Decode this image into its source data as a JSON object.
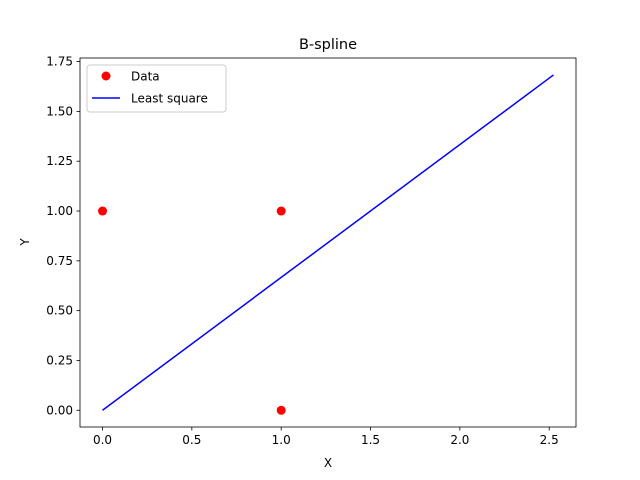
{
  "chart_data": {
    "type": "scatter",
    "title": "B-spline",
    "xlabel": "X",
    "ylabel": "Y",
    "xlim": [
      -0.126,
      2.65
    ],
    "ylim": [
      -0.084,
      1.768
    ],
    "xticks": [
      0.0,
      0.5,
      1.0,
      1.5,
      2.0,
      2.5
    ],
    "xtick_labels": [
      "0.0",
      "0.5",
      "1.0",
      "1.5",
      "2.0",
      "2.5"
    ],
    "yticks": [
      0.0,
      0.25,
      0.5,
      0.75,
      1.0,
      1.25,
      1.5,
      1.75
    ],
    "ytick_labels": [
      "0.00",
      "0.25",
      "0.50",
      "0.75",
      "1.00",
      "1.25",
      "1.50",
      "1.75"
    ],
    "grid": false,
    "legend_position": "upper left",
    "series": [
      {
        "name": "Data",
        "kind": "scatter",
        "color": "#ff0000",
        "points": [
          {
            "x": 0.0,
            "y": 1.0
          },
          {
            "x": 1.0,
            "y": 1.0
          },
          {
            "x": 1.0,
            "y": 0.0
          }
        ]
      },
      {
        "name": "Least square",
        "kind": "line",
        "color": "#0000ff",
        "points": [
          {
            "x": 0.0,
            "y": 0.0
          },
          {
            "x": 2.524,
            "y": 1.683
          }
        ]
      }
    ]
  }
}
